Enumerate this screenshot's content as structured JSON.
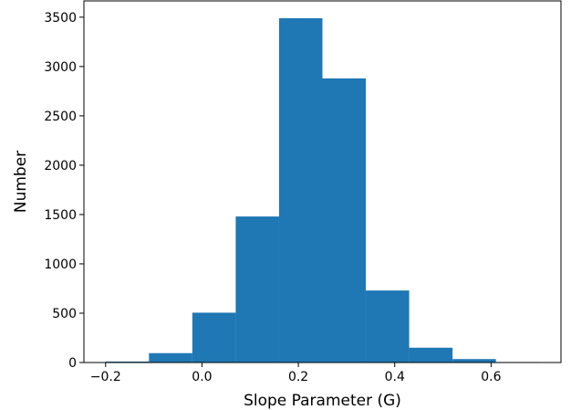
{
  "chart_data": {
    "type": "bar",
    "title": "",
    "xlabel": "Slope Parameter (G)",
    "ylabel": "Number",
    "bin_edges": [
      -0.2,
      -0.11,
      -0.02,
      0.07,
      0.16,
      0.25,
      0.34,
      0.43,
      0.52,
      0.61,
      0.7
    ],
    "values": [
      10,
      95,
      505,
      1480,
      3490,
      2880,
      730,
      150,
      35,
      5
    ],
    "xlim": [
      -0.245,
      0.745
    ],
    "ylim": [
      0,
      3665
    ],
    "xticks": [
      -0.2,
      0.0,
      0.2,
      0.4,
      0.6
    ],
    "xtick_labels": [
      "−0.2",
      "0.0",
      "0.2",
      "0.4",
      "0.6"
    ],
    "yticks": [
      0,
      500,
      1000,
      1500,
      2000,
      2500,
      3000,
      3500
    ],
    "ytick_labels": [
      "0",
      "500",
      "1000",
      "1500",
      "2000",
      "2500",
      "3000",
      "3500"
    ],
    "grid": false,
    "colors": {
      "bar": "#1f77b4",
      "axes": "#000000",
      "background": "#ffffff"
    }
  }
}
